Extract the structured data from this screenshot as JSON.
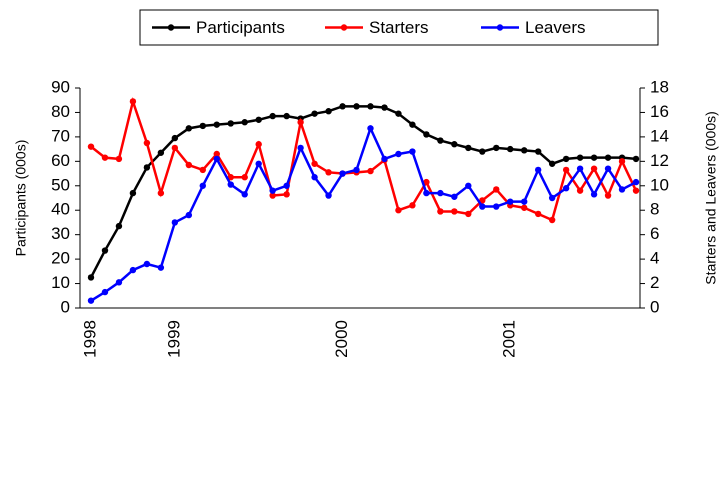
{
  "chart_data": {
    "type": "line",
    "categories": [
      "1998",
      null,
      null,
      null,
      null,
      null,
      "1999",
      null,
      null,
      null,
      null,
      null,
      null,
      null,
      null,
      null,
      null,
      null,
      "2000",
      null,
      null,
      null,
      null,
      null,
      null,
      null,
      null,
      null,
      null,
      null,
      "2001",
      null,
      null,
      null,
      null,
      null,
      null,
      null,
      null,
      null
    ],
    "ylabel": "Participants (000s)",
    "y2label": "Starters and Leavers (000s)",
    "ylim": [
      0,
      90
    ],
    "yticks": [
      0,
      10,
      20,
      30,
      40,
      50,
      60,
      70,
      80,
      90
    ],
    "y2lim": [
      0,
      18
    ],
    "y2ticks": [
      0,
      2,
      4,
      6,
      8,
      10,
      12,
      14,
      16,
      18
    ],
    "legend": "top",
    "series": [
      {
        "name": "Participants",
        "color": "#000000",
        "values": [
          12.5,
          23.5,
          33.5,
          47,
          57.5,
          63.5,
          69.5,
          73.5,
          74.5,
          75,
          75.5,
          76,
          77,
          78.5,
          78.5,
          77.5,
          79.5,
          80.5,
          82.5,
          82.5,
          82.5,
          82,
          79.5,
          75,
          71,
          68.5,
          67,
          65.5,
          64,
          65.5,
          65,
          64.5,
          64,
          59,
          61,
          61.5,
          61.5,
          61.5,
          61.5,
          61
        ]
      },
      {
        "name": "Starters",
        "color": "#ff0000",
        "axis": "y2",
        "values": [
          13.2,
          12.3,
          12.2,
          16.9,
          13.5,
          9.4,
          13.1,
          11.7,
          11.3,
          12.6,
          10.7,
          10.7,
          13.4,
          9.2,
          9.3,
          15.2,
          11.8,
          11.1,
          11.0,
          11.1,
          11.2,
          12.1,
          8.0,
          8.4,
          10.3,
          7.9,
          7.9,
          7.7,
          8.8,
          9.7,
          8.4,
          8.2,
          7.7,
          7.2,
          11.3,
          9.6,
          11.4,
          9.2,
          12.0,
          9.6
        ]
      },
      {
        "name": "Leavers",
        "color": "#0000ff",
        "axis": "y2",
        "values": [
          0.6,
          1.3,
          2.1,
          3.1,
          3.6,
          3.3,
          7.0,
          7.6,
          10.0,
          12.2,
          10.1,
          9.3,
          11.8,
          9.6,
          10.0,
          13.1,
          10.7,
          9.2,
          11.0,
          11.3,
          14.7,
          12.2,
          12.6,
          12.8,
          9.4,
          9.4,
          9.1,
          10.0,
          8.3,
          8.3,
          8.7,
          8.7,
          11.3,
          9.0,
          9.8,
          11.4,
          9.3,
          11.4,
          9.7,
          10.3
        ]
      }
    ]
  }
}
